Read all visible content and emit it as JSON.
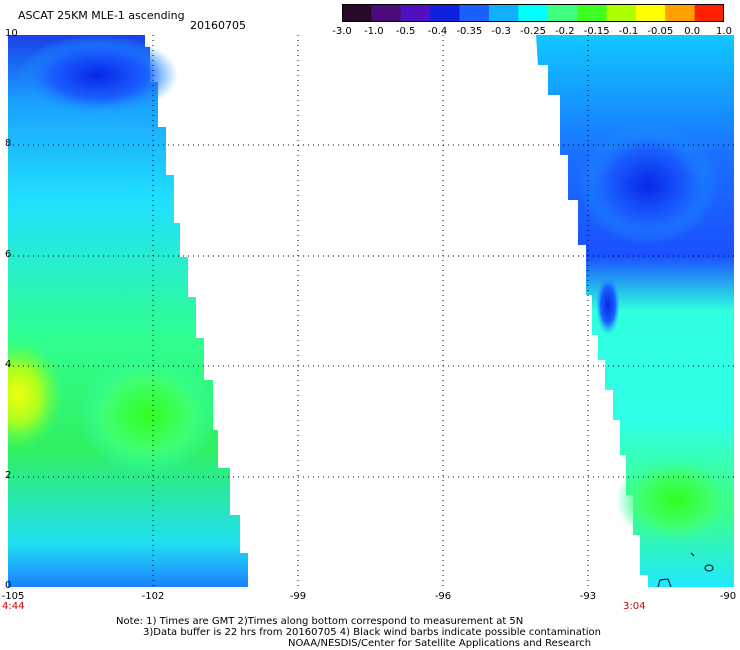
{
  "header": {
    "title": "ASCAT 25KM MLE-1 ascending",
    "date": "20160705"
  },
  "colorbar": {
    "labels": [
      "-3.0",
      "-1.0",
      "-0.5",
      "-0.4",
      "-0.35",
      "-0.3",
      "-0.25",
      "-0.2",
      "-0.15",
      "-0.1",
      "-0.05",
      "0.0",
      "1.0"
    ],
    "colors": [
      "#2a0a2a",
      "#4a0a7a",
      "#5010c0",
      "#1020e0",
      "#1a60ff",
      "#10b0ff",
      "#00ffff",
      "#40ff80",
      "#40ff20",
      "#b0ff00",
      "#ffff00",
      "#ffa000",
      "#ff2000"
    ]
  },
  "map": {
    "y_axis": {
      "ticks": [
        "10",
        "8",
        "6",
        "4",
        "2",
        "0"
      ]
    },
    "x_axis": {
      "ticks": [
        "-105",
        "-102",
        "-99",
        "-96",
        "-93",
        "-90"
      ]
    },
    "time_left": "4:44",
    "time_right": "3:04",
    "lon_range": [
      -105,
      -90
    ],
    "lat_range": [
      0,
      10
    ]
  },
  "notes": {
    "line1": "Note: 1) Times are GMT 2)Times along bottom correspond to measurement at 5N",
    "line2": "3)Data buffer is 22 hrs from 20160705 4) Black wind barbs indicate possible contamination",
    "line3": "NOAA/NESDIS/Center for Satellite Applications and Research"
  }
}
